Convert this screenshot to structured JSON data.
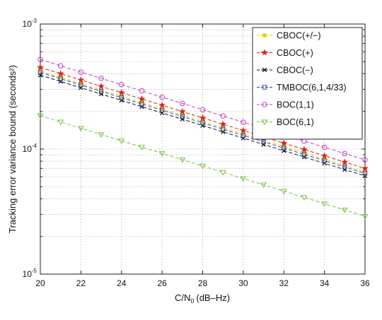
{
  "chart_data": {
    "type": "line",
    "title": "",
    "xlabel": "C/N",
    "xlabel_sub": "0",
    "xlabel_unit": "(dB–Hz)",
    "ylabel": "Tracking error variance bound (seconds²)",
    "xlim": [
      20,
      36
    ],
    "ylim": [
      1e-05,
      0.001
    ],
    "yscale": "log",
    "grid": true,
    "legend_position": "top-right",
    "x_ticks": [
      20,
      22,
      24,
      26,
      28,
      30,
      32,
      34,
      36
    ],
    "x_tick_labels": [
      "20",
      "22",
      "24",
      "26",
      "28",
      "30",
      "32",
      "34",
      "36"
    ],
    "y_ticks": [
      {
        "value": 0.001,
        "base": "10",
        "exp": "-3"
      },
      {
        "value": 0.0001,
        "base": "10",
        "exp": "-4"
      },
      {
        "value": 1e-05,
        "base": "10",
        "exp": "-5"
      }
    ],
    "x": [
      20,
      21,
      22,
      23,
      24,
      25,
      26,
      27,
      28,
      29,
      30,
      31,
      32,
      33,
      34,
      35,
      36
    ],
    "series": [
      {
        "name": "CBOC(+/−)",
        "marker": "dot",
        "color": "#e6d400",
        "start": 0.00042,
        "end": 6.6e-05
      },
      {
        "name": "CBOC(+)",
        "marker": "star",
        "color": "#e02020",
        "start": 0.00045,
        "end": 7e-05
      },
      {
        "name": "CBOC(−)",
        "marker": "x",
        "color": "#111111",
        "start": 0.00039,
        "end": 6.1e-05
      },
      {
        "name": "TMBOC(6,1,4/33)",
        "marker": "square",
        "color": "#3040c0",
        "start": 0.00041,
        "end": 6.4e-05
      },
      {
        "name": "BOC(1,1)",
        "marker": "circle",
        "color": "#c040c0",
        "start": 0.00052,
        "end": 8.2e-05
      },
      {
        "name": "BOC(6,1)",
        "marker": "triangle",
        "color": "#7ac143",
        "start": 0.000185,
        "end": 2.9e-05
      }
    ]
  }
}
